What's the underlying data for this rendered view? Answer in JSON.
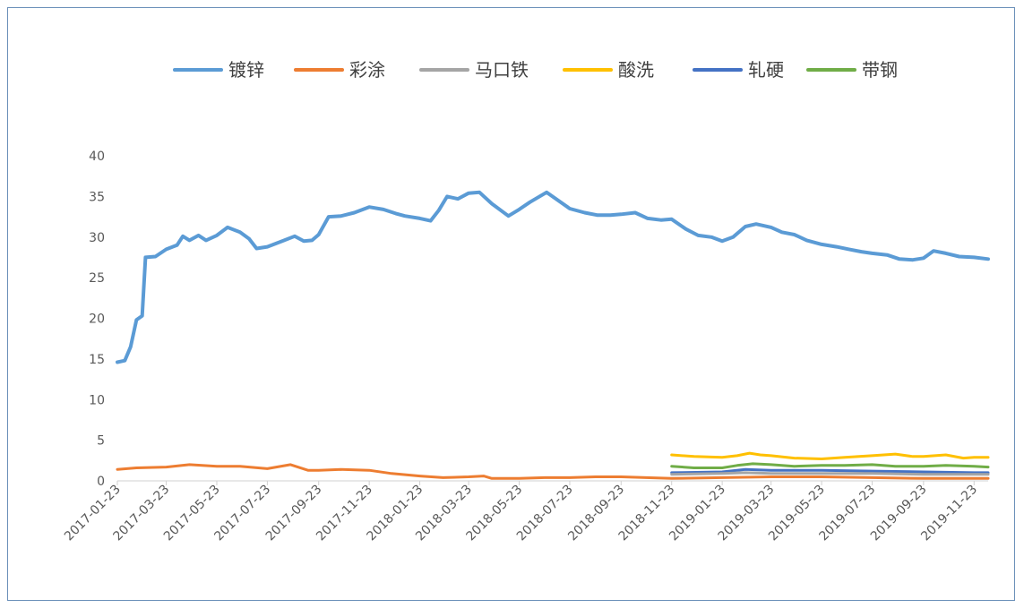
{
  "chart_data": {
    "type": "line",
    "title": "",
    "xlabel": "",
    "ylabel": "",
    "ylim": [
      0,
      40
    ],
    "yticks": [
      "0",
      "5",
      "10",
      "15",
      "20",
      "25",
      "30",
      "35",
      "40"
    ],
    "xticks": [
      "2017-01-23",
      "2017-03-23",
      "2017-05-23",
      "2017-07-23",
      "2017-09-23",
      "2017-11-23",
      "2018-01-23",
      "2018-03-23",
      "2018-05-23",
      "2018-07-23",
      "2018-09-23",
      "2018-11-23",
      "2019-01-23",
      "2019-03-23",
      "2019-05-23",
      "2019-07-23",
      "2019-09-23",
      "2019-11-23"
    ],
    "grid": false,
    "legend_position": "top",
    "series": [
      {
        "name": "镀锌",
        "color": "#5b9bd5",
        "points": [
          [
            "2017-01-23",
            14.6
          ],
          [
            "2017-02-01",
            14.8
          ],
          [
            "2017-02-08",
            16.5
          ],
          [
            "2017-02-15",
            19.8
          ],
          [
            "2017-02-22",
            20.3
          ],
          [
            "2017-02-26",
            27.5
          ],
          [
            "2017-03-10",
            27.6
          ],
          [
            "2017-03-23",
            28.5
          ],
          [
            "2017-04-05",
            29.0
          ],
          [
            "2017-04-12",
            30.1
          ],
          [
            "2017-04-20",
            29.6
          ],
          [
            "2017-05-01",
            30.2
          ],
          [
            "2017-05-10",
            29.6
          ],
          [
            "2017-05-23",
            30.2
          ],
          [
            "2017-06-05",
            31.2
          ],
          [
            "2017-06-20",
            30.6
          ],
          [
            "2017-07-01",
            29.8
          ],
          [
            "2017-07-10",
            28.6
          ],
          [
            "2017-07-23",
            28.8
          ],
          [
            "2017-08-10",
            29.5
          ],
          [
            "2017-08-25",
            30.1
          ],
          [
            "2017-09-05",
            29.5
          ],
          [
            "2017-09-15",
            29.6
          ],
          [
            "2017-09-23",
            30.3
          ],
          [
            "2017-10-05",
            32.5
          ],
          [
            "2017-10-20",
            32.6
          ],
          [
            "2017-11-05",
            33.0
          ],
          [
            "2017-11-23",
            33.7
          ],
          [
            "2017-12-10",
            33.4
          ],
          [
            "2017-12-25",
            32.9
          ],
          [
            "2018-01-05",
            32.6
          ],
          [
            "2018-01-23",
            32.3
          ],
          [
            "2018-02-05",
            32.0
          ],
          [
            "2018-02-15",
            33.3
          ],
          [
            "2018-02-25",
            35.0
          ],
          [
            "2018-03-10",
            34.7
          ],
          [
            "2018-03-23",
            35.4
          ],
          [
            "2018-04-05",
            35.5
          ],
          [
            "2018-04-20",
            34.1
          ],
          [
            "2018-05-10",
            32.6
          ],
          [
            "2018-05-23",
            33.4
          ],
          [
            "2018-06-05",
            34.3
          ],
          [
            "2018-06-25",
            35.5
          ],
          [
            "2018-07-23",
            33.5
          ],
          [
            "2018-08-10",
            33.0
          ],
          [
            "2018-08-25",
            32.7
          ],
          [
            "2018-09-10",
            32.7
          ],
          [
            "2018-09-23",
            32.8
          ],
          [
            "2018-10-10",
            33.0
          ],
          [
            "2018-10-25",
            32.3
          ],
          [
            "2018-11-10",
            32.1
          ],
          [
            "2018-11-23",
            32.2
          ],
          [
            "2018-12-10",
            31.0
          ],
          [
            "2018-12-25",
            30.2
          ],
          [
            "2019-01-10",
            30.0
          ],
          [
            "2019-01-23",
            29.5
          ],
          [
            "2019-02-05",
            30.0
          ],
          [
            "2019-02-20",
            31.3
          ],
          [
            "2019-03-05",
            31.6
          ],
          [
            "2019-03-23",
            31.2
          ],
          [
            "2019-04-05",
            30.6
          ],
          [
            "2019-04-20",
            30.3
          ],
          [
            "2019-05-05",
            29.6
          ],
          [
            "2019-05-23",
            29.1
          ],
          [
            "2019-06-10",
            28.8
          ],
          [
            "2019-06-25",
            28.5
          ],
          [
            "2019-07-10",
            28.2
          ],
          [
            "2019-07-23",
            28.0
          ],
          [
            "2019-08-10",
            27.8
          ],
          [
            "2019-08-25",
            27.3
          ],
          [
            "2019-09-10",
            27.2
          ],
          [
            "2019-09-23",
            27.4
          ],
          [
            "2019-10-05",
            28.3
          ],
          [
            "2019-10-20",
            28.0
          ],
          [
            "2019-11-05",
            27.6
          ],
          [
            "2019-11-23",
            27.5
          ],
          [
            "2019-12-10",
            27.3
          ]
        ]
      },
      {
        "name": "彩涂",
        "color": "#ed7d31",
        "points": [
          [
            "2017-01-23",
            1.4
          ],
          [
            "2017-02-15",
            1.6
          ],
          [
            "2017-03-23",
            1.7
          ],
          [
            "2017-04-20",
            2.0
          ],
          [
            "2017-05-23",
            1.8
          ],
          [
            "2017-06-20",
            1.8
          ],
          [
            "2017-07-23",
            1.5
          ],
          [
            "2017-08-20",
            2.0
          ],
          [
            "2017-09-10",
            1.3
          ],
          [
            "2017-09-23",
            1.3
          ],
          [
            "2017-10-20",
            1.4
          ],
          [
            "2017-11-23",
            1.3
          ],
          [
            "2017-12-20",
            0.9
          ],
          [
            "2018-01-23",
            0.6
          ],
          [
            "2018-02-20",
            0.4
          ],
          [
            "2018-03-23",
            0.5
          ],
          [
            "2018-04-10",
            0.6
          ],
          [
            "2018-04-20",
            0.3
          ],
          [
            "2018-05-23",
            0.3
          ],
          [
            "2018-06-23",
            0.4
          ],
          [
            "2018-07-23",
            0.4
          ],
          [
            "2018-08-23",
            0.5
          ],
          [
            "2018-09-23",
            0.5
          ],
          [
            "2018-10-23",
            0.4
          ],
          [
            "2018-11-23",
            0.3
          ],
          [
            "2019-01-23",
            0.4
          ],
          [
            "2019-03-23",
            0.5
          ],
          [
            "2019-05-23",
            0.5
          ],
          [
            "2019-07-23",
            0.4
          ],
          [
            "2019-09-23",
            0.3
          ],
          [
            "2019-11-23",
            0.3
          ],
          [
            "2019-12-10",
            0.3
          ]
        ]
      },
      {
        "name": "马口铁",
        "color": "#a5a5a5",
        "points": [
          [
            "2018-11-23",
            0.8
          ],
          [
            "2019-01-23",
            0.9
          ],
          [
            "2019-02-20",
            1.0
          ],
          [
            "2019-03-23",
            0.9
          ],
          [
            "2019-05-23",
            0.9
          ],
          [
            "2019-07-23",
            0.9
          ],
          [
            "2019-09-23",
            0.8
          ],
          [
            "2019-11-23",
            0.8
          ],
          [
            "2019-12-10",
            0.8
          ]
        ]
      },
      {
        "name": "酸洗",
        "color": "#ffc000",
        "points": [
          [
            "2018-11-23",
            3.2
          ],
          [
            "2018-12-20",
            3.0
          ],
          [
            "2019-01-23",
            2.9
          ],
          [
            "2019-02-10",
            3.1
          ],
          [
            "2019-02-25",
            3.4
          ],
          [
            "2019-03-10",
            3.2
          ],
          [
            "2019-03-23",
            3.1
          ],
          [
            "2019-04-20",
            2.8
          ],
          [
            "2019-05-23",
            2.7
          ],
          [
            "2019-06-20",
            2.9
          ],
          [
            "2019-07-23",
            3.1
          ],
          [
            "2019-08-20",
            3.3
          ],
          [
            "2019-09-10",
            3.0
          ],
          [
            "2019-09-23",
            3.0
          ],
          [
            "2019-10-20",
            3.2
          ],
          [
            "2019-11-10",
            2.8
          ],
          [
            "2019-11-23",
            2.9
          ],
          [
            "2019-12-10",
            2.9
          ]
        ]
      },
      {
        "name": "轧硬",
        "color": "#4472c4",
        "points": [
          [
            "2018-11-23",
            1.0
          ],
          [
            "2019-01-23",
            1.1
          ],
          [
            "2019-02-20",
            1.4
          ],
          [
            "2019-03-23",
            1.3
          ],
          [
            "2019-05-23",
            1.3
          ],
          [
            "2019-07-23",
            1.2
          ],
          [
            "2019-09-23",
            1.1
          ],
          [
            "2019-11-23",
            1.0
          ],
          [
            "2019-12-10",
            1.0
          ]
        ]
      },
      {
        "name": "带钢",
        "color": "#70ad47",
        "points": [
          [
            "2018-11-23",
            1.8
          ],
          [
            "2018-12-20",
            1.6
          ],
          [
            "2019-01-23",
            1.6
          ],
          [
            "2019-02-10",
            1.9
          ],
          [
            "2019-03-01",
            2.1
          ],
          [
            "2019-03-23",
            2.0
          ],
          [
            "2019-04-20",
            1.8
          ],
          [
            "2019-05-23",
            1.9
          ],
          [
            "2019-06-20",
            1.9
          ],
          [
            "2019-07-23",
            2.0
          ],
          [
            "2019-08-20",
            1.8
          ],
          [
            "2019-09-23",
            1.8
          ],
          [
            "2019-10-20",
            1.9
          ],
          [
            "2019-11-23",
            1.8
          ],
          [
            "2019-12-10",
            1.7
          ]
        ]
      }
    ]
  }
}
